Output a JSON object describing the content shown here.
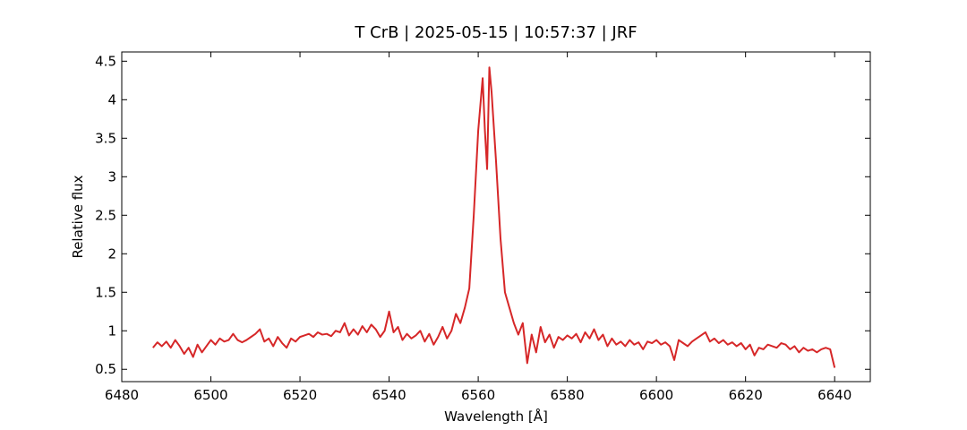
{
  "chart_data": {
    "type": "line",
    "title": "T CrB | 2025-05-15 | 10:57:37 | JRF",
    "x_label": "Wavelength [Å]",
    "y_label": "Relative flux",
    "x": [
      6487,
      6488,
      6489,
      6490,
      6491,
      6492,
      6493,
      6494,
      6495,
      6496,
      6497,
      6498,
      6499,
      6500,
      6501,
      6502,
      6503,
      6504,
      6505,
      6506,
      6507,
      6508,
      6509,
      6510,
      6511,
      6512,
      6513,
      6514,
      6515,
      6516,
      6517,
      6518,
      6519,
      6520,
      6521,
      6522,
      6523,
      6524,
      6525,
      6526,
      6527,
      6528,
      6529,
      6530,
      6531,
      6532,
      6533,
      6534,
      6535,
      6536,
      6537,
      6538,
      6539,
      6540,
      6541,
      6542,
      6543,
      6544,
      6545,
      6546,
      6547,
      6548,
      6549,
      6550,
      6551,
      6552,
      6553,
      6554,
      6555,
      6556,
      6557,
      6558,
      6559,
      6560,
      6561,
      6561.5,
      6562,
      6562.5,
      6563,
      6564,
      6565,
      6566,
      6567,
      6568,
      6569,
      6570,
      6571,
      6572,
      6573,
      6574,
      6575,
      6576,
      6577,
      6578,
      6579,
      6580,
      6581,
      6582,
      6583,
      6584,
      6585,
      6586,
      6587,
      6588,
      6589,
      6590,
      6591,
      6592,
      6593,
      6594,
      6595,
      6596,
      6597,
      6598,
      6599,
      6600,
      6601,
      6602,
      6603,
      6604,
      6605,
      6606,
      6607,
      6608,
      6609,
      6610,
      6611,
      6612,
      6613,
      6614,
      6615,
      6616,
      6617,
      6618,
      6619,
      6620,
      6621,
      6622,
      6623,
      6624,
      6625,
      6626,
      6627,
      6628,
      6629,
      6630,
      6631,
      6632,
      6633,
      6634,
      6635,
      6636,
      6637,
      6638,
      6639,
      6640
    ],
    "series": [
      {
        "color": "#d62728",
        "values": [
          0.78,
          0.85,
          0.8,
          0.86,
          0.78,
          0.88,
          0.8,
          0.7,
          0.78,
          0.66,
          0.82,
          0.72,
          0.8,
          0.88,
          0.82,
          0.9,
          0.86,
          0.88,
          0.96,
          0.88,
          0.85,
          0.88,
          0.92,
          0.96,
          1.02,
          0.86,
          0.9,
          0.8,
          0.92,
          0.84,
          0.78,
          0.9,
          0.86,
          0.92,
          0.94,
          0.96,
          0.92,
          0.98,
          0.95,
          0.96,
          0.93,
          1.0,
          0.98,
          1.1,
          0.94,
          1.02,
          0.95,
          1.06,
          0.98,
          1.08,
          1.02,
          0.92,
          1.0,
          1.25,
          0.98,
          1.05,
          0.88,
          0.96,
          0.9,
          0.94,
          1.0,
          0.86,
          0.96,
          0.82,
          0.92,
          1.05,
          0.9,
          1.0,
          1.22,
          1.1,
          1.3,
          1.55,
          2.5,
          3.6,
          4.28,
          3.6,
          3.1,
          4.42,
          4.1,
          3.2,
          2.2,
          1.5,
          1.3,
          1.1,
          0.95,
          1.1,
          0.58,
          0.95,
          0.72,
          1.05,
          0.85,
          0.95,
          0.78,
          0.92,
          0.88,
          0.94,
          0.9,
          0.96,
          0.85,
          0.98,
          0.9,
          1.02,
          0.88,
          0.95,
          0.8,
          0.9,
          0.82,
          0.86,
          0.8,
          0.88,
          0.82,
          0.85,
          0.76,
          0.86,
          0.84,
          0.88,
          0.82,
          0.85,
          0.8,
          0.62,
          0.88,
          0.84,
          0.8,
          0.86,
          0.9,
          0.94,
          0.98,
          0.86,
          0.9,
          0.84,
          0.88,
          0.82,
          0.85,
          0.8,
          0.84,
          0.76,
          0.82,
          0.68,
          0.78,
          0.76,
          0.82,
          0.8,
          0.78,
          0.84,
          0.82,
          0.76,
          0.8,
          0.72,
          0.78,
          0.74,
          0.76,
          0.72,
          0.76,
          0.78,
          0.76,
          0.52
        ]
      }
    ],
    "xlim": [
      6480,
      6648
    ],
    "xticks": [
      6480,
      6500,
      6520,
      6540,
      6560,
      6580,
      6600,
      6620,
      6640
    ],
    "ylim": [
      0.34,
      4.62
    ],
    "yticks": [
      0.5,
      1.0,
      1.5,
      2.0,
      2.5,
      3.0,
      3.5,
      4.0,
      4.5
    ]
  }
}
